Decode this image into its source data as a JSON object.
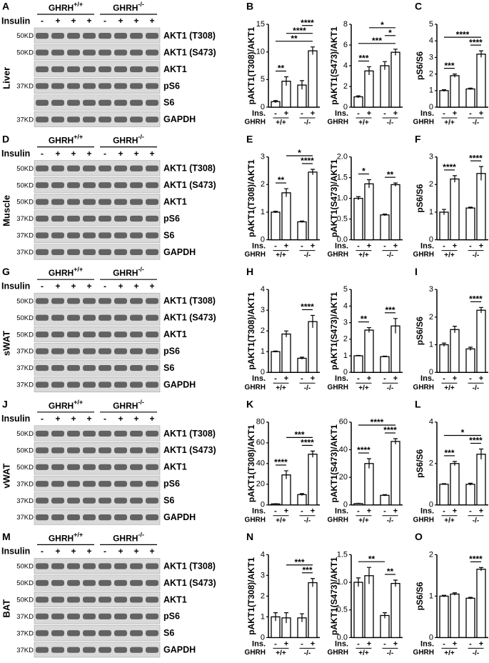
{
  "blots": [
    {
      "letter": "A",
      "tissue": "Liver",
      "genotypes": [
        {
          "name": "GHRH",
          "sup": "+/+"
        },
        {
          "name": "GHRH",
          "sup": "-/-"
        }
      ],
      "treatment": "Insulin",
      "lanes": [
        "-",
        "+",
        "+",
        "+",
        "-",
        "+",
        "+",
        "+"
      ],
      "markers": [
        "50KD",
        "50KD",
        null,
        "37KD",
        null,
        "37KD"
      ],
      "bands": [
        "AKT1 (T308)",
        "AKT1 (S473)",
        "AKT1",
        "pS6",
        "S6",
        "GAPDH"
      ]
    },
    {
      "letter": "D",
      "tissue": "Muscle",
      "genotypes": [
        {
          "name": "GHRH",
          "sup": "+/+"
        },
        {
          "name": "GHRH",
          "sup": "-/-"
        }
      ],
      "treatment": "Insulin",
      "lanes": [
        "-",
        "+",
        "+",
        "+",
        "-",
        "+",
        "+",
        "+"
      ],
      "markers": [
        "50KD",
        "50KD",
        "50KD",
        "37KD",
        "37KD",
        "37KD"
      ],
      "bands": [
        "AKT1 (T308)",
        "AKT1 (S473)",
        "AKT1",
        "pS6",
        "S6",
        "GAPDH"
      ]
    },
    {
      "letter": "G",
      "tissue": "sWAT",
      "genotypes": [
        {
          "name": "GHRH",
          "sup": "+/+"
        },
        {
          "name": "GHRH",
          "sup": "-/-"
        }
      ],
      "treatment": "Insulin",
      "lanes": [
        "-",
        "+",
        "+",
        "+",
        "-",
        "+",
        "+",
        "+"
      ],
      "markers": [
        "50KD",
        "50KD",
        "50KD",
        "37KD",
        "37KD",
        "37KD"
      ],
      "bands": [
        "AKT1 (T308)",
        "AKT1 (S473)",
        "AKT1",
        "pS6",
        "S6",
        "GAPDH"
      ]
    },
    {
      "letter": "J",
      "tissue": "vWAT",
      "genotypes": [
        {
          "name": "GHRH",
          "sup": "+/+"
        },
        {
          "name": "GHRH",
          "sup": "-/-"
        }
      ],
      "treatment": "Insulin",
      "lanes": [
        "-",
        "+",
        "+",
        "+",
        "-",
        "+",
        "+",
        "+"
      ],
      "markers": [
        "50KD",
        "50KD",
        "50KD",
        "37KD",
        "37KD",
        "37KD"
      ],
      "bands": [
        "AKT1 (T308)",
        "AKT1 (S473)",
        "AKT1",
        "pS6",
        "S6",
        "GAPDH"
      ]
    },
    {
      "letter": "M",
      "tissue": "BAT",
      "genotypes": [
        {
          "name": "GHRH",
          "sup": "+/+"
        },
        {
          "name": "GHRH",
          "sup": "-/-"
        }
      ],
      "treatment": "Insulin",
      "lanes": [
        "-",
        "+",
        "+",
        "+",
        "-",
        "+",
        "+",
        "+"
      ],
      "markers": [
        "50KD",
        "50KD",
        "50KD",
        "37KD",
        "37KD",
        "37KD"
      ],
      "bands": [
        "AKT1 (T308)",
        "AKT1 (S473)",
        "AKT1",
        "pS6",
        "S6",
        "GAPDH"
      ]
    }
  ],
  "chart_data": [
    {
      "type": "bar",
      "panel": "B",
      "y_label": "pAKT1(T308)/AKT1",
      "x_label": "Ins.",
      "group_label": "GHRH",
      "groups": [
        "+/+",
        "-/-"
      ],
      "categories": [
        "-",
        "+",
        "-",
        "+"
      ],
      "values": [
        1,
        4.7,
        4,
        10.2
      ],
      "errors": [
        0.2,
        0.8,
        0.8,
        0.7
      ],
      "color": "#ffffff",
      "ylim": [
        0,
        15
      ],
      "yticks": [
        0,
        5,
        10,
        15
      ],
      "significance": [
        {
          "from": 0,
          "to": 1,
          "label": "**"
        },
        {
          "from": 0,
          "to": 3,
          "label": "**"
        },
        {
          "from": 1,
          "to": 3,
          "label": "****"
        },
        {
          "from": 2,
          "to": 3,
          "label": "****"
        }
      ]
    },
    {
      "type": "bar",
      "y_label": "pAKT1(S473)/AKT1",
      "x_label": "Ins.",
      "group_label": "GHRH",
      "groups": [
        "+/+",
        "-/-"
      ],
      "categories": [
        "-",
        "+",
        "-",
        "+"
      ],
      "values": [
        1,
        3.5,
        4,
        5.3
      ],
      "errors": [
        0.1,
        0.4,
        0.4,
        0.3
      ],
      "color": "#ffffff",
      "ylim": [
        0,
        8
      ],
      "yticks": [
        0,
        2,
        4,
        6,
        8
      ],
      "significance": [
        {
          "from": 0,
          "to": 1,
          "label": "***"
        },
        {
          "from": 0,
          "to": 3,
          "label": "***"
        },
        {
          "from": 2,
          "to": 3,
          "label": "*"
        },
        {
          "from": 1,
          "to": 3,
          "label": "*"
        }
      ]
    },
    {
      "type": "bar",
      "panel": "C",
      "y_label": "pS6/S6",
      "x_label": "Ins.",
      "group_label": "GHRH",
      "groups": [
        "+/+",
        "-/-"
      ],
      "categories": [
        "-",
        "+",
        "-",
        "+"
      ],
      "values": [
        1,
        1.9,
        1.1,
        3.2
      ],
      "errors": [
        0.05,
        0.1,
        0.05,
        0.2
      ],
      "color": "#ffffff",
      "ylim": [
        0,
        5
      ],
      "yticks": [
        0,
        1,
        2,
        3,
        4,
        5
      ],
      "significance": [
        {
          "from": 0,
          "to": 1,
          "label": "***"
        },
        {
          "from": 2,
          "to": 3,
          "label": "****"
        },
        {
          "from": 0,
          "to": 3,
          "label": "****"
        }
      ]
    },
    {
      "type": "bar",
      "panel": "E",
      "y_label": "pAKT1(T308)/AKT1",
      "x_label": "Ins.",
      "group_label": "GHRH",
      "groups": [
        "+/+",
        "-/-"
      ],
      "categories": [
        "-",
        "+",
        "-",
        "+"
      ],
      "values": [
        1,
        1.7,
        0.65,
        2.45
      ],
      "errors": [
        0.03,
        0.15,
        0.03,
        0.1
      ],
      "color": "#ffffff",
      "ylim": [
        0,
        3
      ],
      "yticks": [
        0,
        1,
        2,
        3
      ],
      "significance": [
        {
          "from": 0,
          "to": 1,
          "label": "**"
        },
        {
          "from": 2,
          "to": 3,
          "label": "****"
        },
        {
          "from": 1,
          "to": 3,
          "label": "*"
        }
      ]
    },
    {
      "type": "bar",
      "y_label": "pAKT1(S473)/AKT1",
      "x_label": "Ins.",
      "group_label": "GHRH",
      "groups": [
        "+/+",
        "-/-"
      ],
      "categories": [
        "-",
        "+",
        "-",
        "+"
      ],
      "values": [
        1,
        1.35,
        0.6,
        1.33
      ],
      "errors": [
        0.04,
        0.1,
        0.02,
        0.04
      ],
      "color": "#ffffff",
      "ylim": [
        0,
        2
      ],
      "yticks": [
        {
          "value": 0,
          "label": "0.0"
        },
        0.5,
        {
          "value": 1,
          "label": "1.0"
        },
        1.5,
        {
          "value": 2,
          "label": "2.0"
        }
      ],
      "significance": [
        {
          "from": 0,
          "to": 1,
          "label": "*"
        },
        {
          "from": 2,
          "to": 3,
          "label": "**"
        }
      ]
    },
    {
      "type": "bar",
      "panel": "F",
      "y_label": "pS6/S6",
      "x_label": "Ins.",
      "group_label": "GHRH",
      "groups": [
        "+/+",
        "-/-"
      ],
      "categories": [
        "-",
        "+",
        "-",
        "+"
      ],
      "values": [
        1,
        2.2,
        1.15,
        2.4
      ],
      "errors": [
        0.1,
        0.12,
        0.03,
        0.25
      ],
      "color": "#ffffff",
      "ylim": [
        0,
        3
      ],
      "yticks": [
        0,
        1,
        2,
        3
      ],
      "significance": [
        {
          "from": 0,
          "to": 1,
          "label": "****"
        },
        {
          "from": 2,
          "to": 3,
          "label": "****"
        }
      ]
    },
    {
      "type": "bar",
      "panel": "H",
      "y_label": "pAKT1(T308)/AKT1",
      "x_label": "Ins.",
      "group_label": "GHRH",
      "groups": [
        "+/+",
        "-/-"
      ],
      "categories": [
        "-",
        "+",
        "-",
        "+"
      ],
      "values": [
        1,
        1.85,
        0.68,
        2.45
      ],
      "errors": [
        0.03,
        0.15,
        0.05,
        0.3
      ],
      "color": "#ffffff",
      "ylim": [
        0,
        4
      ],
      "yticks": [
        0,
        1,
        2,
        3,
        4
      ],
      "significance": [
        {
          "from": 2,
          "to": 3,
          "label": "****"
        }
      ]
    },
    {
      "type": "bar",
      "y_label": "pAKT1(S473)/AKT1",
      "x_label": "Ins.",
      "group_label": "GHRH",
      "groups": [
        "+/+",
        "-/-"
      ],
      "categories": [
        "-",
        "+",
        "-",
        "+"
      ],
      "values": [
        1,
        2.55,
        0.95,
        2.8
      ],
      "errors": [
        0.02,
        0.15,
        0.03,
        0.45
      ],
      "color": "#ffffff",
      "ylim": [
        0,
        5
      ],
      "yticks": [
        0,
        1,
        2,
        3,
        4,
        5
      ],
      "significance": [
        {
          "from": 0,
          "to": 1,
          "label": "**"
        },
        {
          "from": 2,
          "to": 3,
          "label": "***"
        }
      ]
    },
    {
      "type": "bar",
      "panel": "I",
      "y_label": "pS6/S6",
      "x_label": "Ins.",
      "group_label": "GHRH",
      "groups": [
        "+/+",
        "-/-"
      ],
      "categories": [
        "-",
        "+",
        "-",
        "+"
      ],
      "values": [
        1,
        1.55,
        0.85,
        2.25
      ],
      "errors": [
        0.06,
        0.12,
        0.06,
        0.1
      ],
      "color": "#ffffff",
      "ylim": [
        0,
        3
      ],
      "yticks": [
        0,
        1,
        2,
        3
      ],
      "significance": [
        {
          "from": 2,
          "to": 3,
          "label": "****"
        }
      ]
    },
    {
      "type": "bar",
      "panel": "K",
      "y_label": "pAKT1(T308)/AKT1",
      "x_label": "Ins.",
      "group_label": "GHRH",
      "groups": [
        "+/+",
        "-/-"
      ],
      "categories": [
        "-",
        "+",
        "-",
        "+"
      ],
      "values": [
        1,
        29,
        10,
        49
      ],
      "errors": [
        0.2,
        4,
        1,
        3
      ],
      "color": "#ffffff",
      "ylim": [
        0,
        80
      ],
      "yticks": [
        0,
        20,
        40,
        60,
        80
      ],
      "significance": [
        {
          "from": 0,
          "to": 1,
          "label": "****"
        },
        {
          "from": 2,
          "to": 3,
          "label": "****"
        },
        {
          "from": 1,
          "to": 3,
          "label": "***"
        }
      ]
    },
    {
      "type": "bar",
      "y_label": "pAKT1(S473)/AKT1",
      "x_label": "Ins.",
      "group_label": "GHRH",
      "groups": [
        "+/+",
        "-/-"
      ],
      "categories": [
        "-",
        "+",
        "-",
        "+"
      ],
      "values": [
        1,
        30,
        7,
        46
      ],
      "errors": [
        0.2,
        3.5,
        0.5,
        2
      ],
      "color": "#ffffff",
      "ylim": [
        0,
        60
      ],
      "yticks": [
        0,
        20,
        40,
        60
      ],
      "significance": [
        {
          "from": 0,
          "to": 1,
          "label": "****"
        },
        {
          "from": 2,
          "to": 3,
          "label": "****"
        },
        {
          "from": 0,
          "to": 3,
          "label": "****"
        }
      ]
    },
    {
      "type": "bar",
      "panel": "L",
      "y_label": "pS6/S6",
      "x_label": "Ins.",
      "group_label": "GHRH",
      "groups": [
        "+/+",
        "-/-"
      ],
      "categories": [
        "-",
        "+",
        "-",
        "+"
      ],
      "values": [
        1,
        2,
        1,
        2.45
      ],
      "errors": [
        0.03,
        0.1,
        0.05,
        0.25
      ],
      "color": "#ffffff",
      "ylim": [
        0,
        4
      ],
      "yticks": [
        0,
        2,
        4
      ],
      "significance": [
        {
          "from": 0,
          "to": 1,
          "label": "***"
        },
        {
          "from": 2,
          "to": 3,
          "label": "****"
        },
        {
          "from": 0,
          "to": 3,
          "label": "*"
        }
      ]
    },
    {
      "type": "bar",
      "panel": "N",
      "y_label": "pAKT1(T308)/AKT1",
      "x_label": "Ins.",
      "group_label": "GHRH",
      "groups": [
        "+/+",
        "-/-"
      ],
      "categories": [
        "-",
        "+",
        "-",
        "+"
      ],
      "values": [
        1,
        0.95,
        0.95,
        2.65
      ],
      "errors": [
        0.2,
        0.25,
        0.2,
        0.2
      ],
      "color": "#ffffff",
      "ylim": [
        0,
        4
      ],
      "yticks": [
        0,
        1,
        2,
        3,
        4
      ],
      "significance": [
        {
          "from": 2,
          "to": 3,
          "label": "***"
        },
        {
          "from": 1,
          "to": 3,
          "label": "***"
        }
      ]
    },
    {
      "type": "bar",
      "y_label": "pAKT1(S473)/AKT1",
      "x_label": "Ins.",
      "group_label": "GHRH",
      "groups": [
        "+/+",
        "-/-"
      ],
      "categories": [
        "-",
        "+",
        "-",
        "+"
      ],
      "values": [
        1,
        1.12,
        0.4,
        0.98
      ],
      "errors": [
        0.08,
        0.15,
        0.05,
        0.06
      ],
      "color": "#ffffff",
      "ylim": [
        0,
        1.5
      ],
      "yticks": [
        {
          "value": 0,
          "label": "0.0"
        },
        0.5,
        {
          "value": 1,
          "label": "1.0"
        },
        1.5
      ],
      "significance": [
        {
          "from": 2,
          "to": 3,
          "label": "**"
        },
        {
          "from": 0,
          "to": 2,
          "label": "**"
        }
      ]
    },
    {
      "type": "bar",
      "panel": "O",
      "y_label": "pS6/S6",
      "x_label": "Ins.",
      "group_label": "GHRH",
      "groups": [
        "+/+",
        "-/-"
      ],
      "categories": [
        "-",
        "+",
        "-",
        "+"
      ],
      "values": [
        1,
        1.05,
        0.95,
        1.65
      ],
      "errors": [
        0.02,
        0.03,
        0.02,
        0.04
      ],
      "color": "#ffffff",
      "ylim": [
        0,
        2
      ],
      "yticks": [
        0,
        1,
        2
      ],
      "significance": [
        {
          "from": 2,
          "to": 3,
          "label": "****"
        }
      ]
    }
  ]
}
